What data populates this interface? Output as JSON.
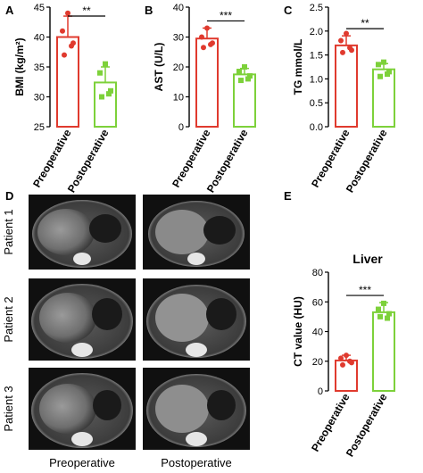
{
  "colors": {
    "pre": "#e03a2e",
    "post": "#7dd13a",
    "axis": "#000000",
    "ct_bg": "#101010"
  },
  "panels": {
    "A": "A",
    "B": "B",
    "C": "C",
    "D": "D",
    "E": "E"
  },
  "ct_images": {
    "row_labels": [
      "Patient 1",
      "Patient 2",
      "Patient 3"
    ],
    "col_labels": [
      "Preoperative",
      "Postoperative"
    ]
  },
  "chart_data": [
    {
      "panel": "A",
      "type": "bar",
      "categories": [
        "Preoperative",
        "Postoperative"
      ],
      "values": [
        40.0,
        32.4
      ],
      "errors": [
        3.5,
        2.6
      ],
      "points": [
        [
          44.0,
          41.0,
          39.0,
          37.0,
          38.5
        ],
        [
          35.5,
          34.0,
          31.0,
          30.0,
          30.5
        ]
      ],
      "ylabel": "BMI (kg/m²)",
      "ylim": [
        25,
        45
      ],
      "yticks": [
        25,
        30,
        35,
        40,
        45
      ],
      "significance": "**"
    },
    {
      "panel": "B",
      "type": "bar",
      "categories": [
        "Preoperative",
        "Postoperative"
      ],
      "values": [
        29.5,
        17.5
      ],
      "errors": [
        3.5,
        2.0
      ],
      "points": [
        [
          33.0,
          30.0,
          28.0,
          26.5,
          27.5
        ],
        [
          20.0,
          18.5,
          17.0,
          15.5,
          16.0
        ]
      ],
      "ylabel": "AST (U/L)",
      "ylim": [
        0,
        40
      ],
      "yticks": [
        0,
        10,
        20,
        30,
        40
      ],
      "significance": "***"
    },
    {
      "panel": "C",
      "type": "bar",
      "categories": [
        "Preoperative",
        "Postoperative"
      ],
      "values": [
        1.7,
        1.2
      ],
      "errors": [
        0.2,
        0.12
      ],
      "points": [
        [
          1.95,
          1.8,
          1.6,
          1.55,
          1.65
        ],
        [
          1.35,
          1.3,
          1.15,
          1.05,
          1.1
        ]
      ],
      "ylabel": "TG mmol/L",
      "ylim": [
        0.0,
        2.5
      ],
      "yticks": [
        0.0,
        0.5,
        1.0,
        1.5,
        2.0,
        2.5
      ],
      "significance": "**"
    },
    {
      "panel": "E",
      "type": "bar",
      "title": "Liver",
      "categories": [
        "Preoperative",
        "Postoperative"
      ],
      "values": [
        20.5,
        53.0
      ],
      "errors": [
        3.5,
        6.5
      ],
      "points": [
        [
          24.0,
          22.0,
          19.0,
          17.5,
          20.0
        ],
        [
          59.0,
          55.0,
          52.0,
          50.0,
          49.0
        ]
      ],
      "ylabel": "CT value (HU)",
      "ylim": [
        0,
        80
      ],
      "yticks": [
        0,
        20,
        40,
        60,
        80
      ],
      "significance": "***"
    }
  ]
}
